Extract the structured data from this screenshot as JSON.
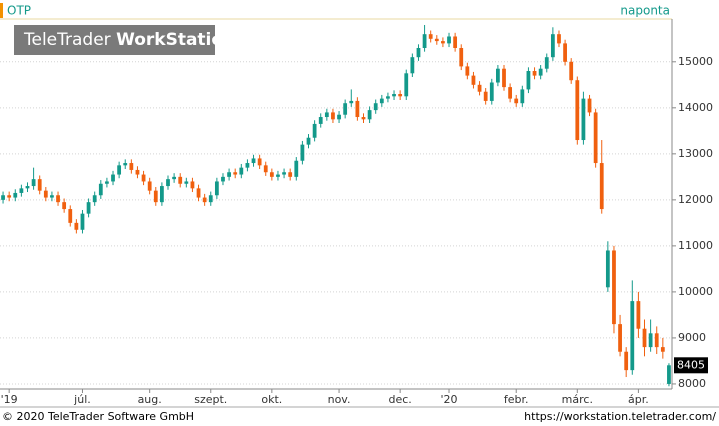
{
  "chart_data": {
    "type": "candlestick",
    "title": "OTP",
    "subtitle": "naponta",
    "ylim": [
      7890,
      15930
    ],
    "yticks": [
      8000,
      9000,
      10000,
      11000,
      12000,
      13000,
      14000,
      15000
    ],
    "xlim": [
      -0.5,
      109.5
    ],
    "xticks": [
      {
        "value": 1,
        "label": "'19"
      },
      {
        "value": 13,
        "label": "júl."
      },
      {
        "value": 24,
        "label": "aug."
      },
      {
        "value": 34,
        "label": "szept."
      },
      {
        "value": 44,
        "label": "okt."
      },
      {
        "value": 55,
        "label": "nov."
      },
      {
        "value": 65,
        "label": "dec."
      },
      {
        "value": 73,
        "label": "'20"
      },
      {
        "value": 84,
        "label": "febr."
      },
      {
        "value": 94,
        "label": "márc."
      },
      {
        "value": 104,
        "label": "ápr."
      }
    ],
    "grid": true,
    "up_color": "#13998a",
    "down_color": "#f0600f",
    "last_price": 8405,
    "open": [
      12000,
      12100,
      12050,
      12150,
      12250,
      12300,
      12450,
      12200,
      12050,
      12100,
      11950,
      11800,
      11500,
      11350,
      11700,
      11950,
      12100,
      12350,
      12400,
      12550,
      12750,
      12800,
      12650,
      12550,
      12400,
      12200,
      11950,
      12300,
      12450,
      12500,
      12350,
      12400,
      12250,
      12050,
      11950,
      12100,
      12400,
      12500,
      12600,
      12550,
      12700,
      12800,
      12900,
      12750,
      12600,
      12500,
      12550,
      12600,
      12500,
      12850,
      13200,
      13350,
      13650,
      13800,
      13900,
      13750,
      13850,
      14100,
      14150,
      13800,
      13750,
      13950,
      14100,
      14200,
      14250,
      14300,
      14250,
      14750,
      15100,
      15300,
      15600,
      15500,
      15450,
      15400,
      15550,
      15300,
      14900,
      14700,
      14500,
      14350,
      14150,
      14550,
      14850,
      14450,
      14200,
      14100,
      14400,
      14800,
      14700,
      14850,
      15100,
      15600,
      15400,
      15000,
      14600,
      13300,
      14200,
      13900,
      12800,
      10100,
      10900,
      9300,
      8700,
      8300,
      9800,
      9200,
      8800,
      9100,
      8800,
      8000
    ],
    "high": [
      12180,
      12180,
      12230,
      12330,
      12380,
      12700,
      12530,
      12280,
      12180,
      12180,
      12030,
      11880,
      11580,
      11780,
      12030,
      12180,
      12430,
      12480,
      12630,
      12830,
      12880,
      12880,
      12730,
      12630,
      12480,
      12280,
      12380,
      12530,
      12580,
      12580,
      12480,
      12480,
      12330,
      12130,
      12180,
      12480,
      12580,
      12680,
      12680,
      12780,
      12880,
      12980,
      12980,
      12830,
      12680,
      12630,
      12680,
      12680,
      12930,
      13280,
      13430,
      13730,
      13880,
      13980,
      13980,
      13930,
      14180,
      14400,
      14230,
      13880,
      14030,
      14180,
      14280,
      14330,
      14380,
      14380,
      14830,
      15180,
      15380,
      15800,
      15680,
      15580,
      15530,
      15630,
      15630,
      15380,
      14980,
      14780,
      14580,
      14430,
      14630,
      14930,
      14930,
      14530,
      14280,
      14480,
      14880,
      14880,
      14930,
      15180,
      15750,
      15680,
      15480,
      15080,
      14680,
      14350,
      14280,
      13980,
      13300,
      11100,
      11000,
      9500,
      8800,
      10250,
      10000,
      9400,
      9400,
      9250,
      9000,
      8450
    ],
    "low": [
      11920,
      11970,
      11970,
      12070,
      12170,
      12220,
      12120,
      11970,
      11970,
      11870,
      11720,
      11420,
      11270,
      11270,
      11620,
      11870,
      12020,
      12270,
      12320,
      12470,
      12670,
      12570,
      12470,
      12320,
      12120,
      11870,
      11870,
      12220,
      12370,
      12270,
      12270,
      12170,
      11970,
      11870,
      11870,
      12020,
      12320,
      12420,
      12470,
      12470,
      12620,
      12720,
      12670,
      12520,
      12420,
      12420,
      12470,
      12420,
      12420,
      12770,
      13120,
      13270,
      13570,
      13720,
      13670,
      13670,
      13770,
      14020,
      13720,
      13670,
      13670,
      13870,
      14020,
      14120,
      14170,
      14170,
      14170,
      14670,
      15020,
      15220,
      15420,
      15370,
      15320,
      15320,
      15220,
      14820,
      14620,
      14420,
      14270,
      14070,
      14070,
      14470,
      14370,
      14120,
      14020,
      14020,
      14320,
      14620,
      14620,
      14770,
      15020,
      15320,
      14920,
      14520,
      13200,
      13200,
      13820,
      12700,
      11700,
      10000,
      9100,
      8600,
      8150,
      8200,
      9000,
      8600,
      8700,
      8650,
      8550,
      7950
    ],
    "close": [
      12100,
      12050,
      12150,
      12250,
      12300,
      12450,
      12200,
      12050,
      12100,
      11950,
      11800,
      11500,
      11350,
      11700,
      11950,
      12100,
      12350,
      12400,
      12550,
      12750,
      12800,
      12650,
      12550,
      12400,
      12200,
      11950,
      12300,
      12450,
      12500,
      12350,
      12400,
      12250,
      12050,
      11950,
      12100,
      12400,
      12500,
      12600,
      12550,
      12700,
      12800,
      12900,
      12750,
      12600,
      12500,
      12550,
      12600,
      12500,
      12850,
      13200,
      13350,
      13650,
      13800,
      13900,
      13750,
      13850,
      14100,
      14150,
      13800,
      13750,
      13950,
      14100,
      14200,
      14250,
      14300,
      14250,
      14750,
      15100,
      15300,
      15600,
      15500,
      15450,
      15400,
      15550,
      15300,
      14900,
      14700,
      14500,
      14350,
      14150,
      14550,
      14850,
      14450,
      14200,
      14100,
      14400,
      14800,
      14700,
      14850,
      15100,
      15600,
      15400,
      15000,
      14600,
      13300,
      14200,
      13900,
      12800,
      11800,
      10900,
      9300,
      8700,
      8300,
      9800,
      9200,
      8800,
      9100,
      8800,
      8700,
      8405
    ]
  },
  "watermark": {
    "brand": "TeleTrader",
    "product": "WorkStation"
  },
  "footer": {
    "copyright": "© 2020 TeleTrader Software GmbH",
    "url": "https://workstation.teletrader.com/"
  }
}
